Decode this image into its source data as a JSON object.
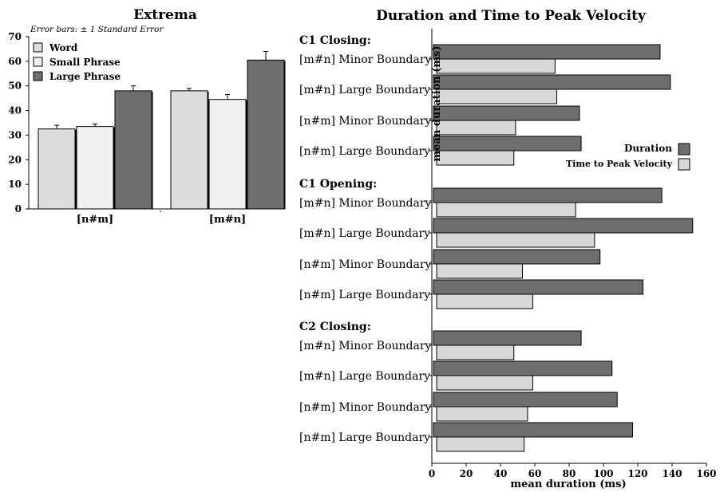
{
  "chart_data": [
    {
      "type": "bar",
      "title": "Extrema",
      "annotation": "Error bars: ± 1 Standard Error",
      "categories": [
        "[n#m]",
        "[m#n]"
      ],
      "ylim": [
        0,
        70
      ],
      "yticks": [
        "0",
        "10",
        "20",
        "30",
        "40",
        "50",
        "60",
        "70"
      ],
      "legend_position": "top-left",
      "series": [
        {
          "name": "Word",
          "color": "#dcdcdc",
          "values": [
            32.5,
            48
          ],
          "error": [
            1.5,
            1
          ]
        },
        {
          "name": "Small Phrase",
          "color": "#f0f0f0",
          "values": [
            33.5,
            44.5
          ],
          "error": [
            1,
            2
          ]
        },
        {
          "name": "Large Phrase",
          "color": "#6e6e6e",
          "values": [
            48,
            60.5
          ],
          "error": [
            2,
            3.5
          ]
        }
      ]
    },
    {
      "type": "bar",
      "orientation": "horizontal",
      "title": "Duration and Time to Peak Velocity",
      "xlabel": "mean duration (ms)",
      "ylabel_overlap": "mean duration (ms)",
      "xlim": [
        0,
        160
      ],
      "xticks": [
        "0",
        "20",
        "40",
        "60",
        "80",
        "100",
        "120",
        "140",
        "160"
      ],
      "legend_position": "right",
      "series": [
        {
          "name": "Duration",
          "color": "#6e6e6e"
        },
        {
          "name": "Time to Peak Velocity",
          "color": "#d8d8d8"
        }
      ],
      "groups": [
        {
          "label": "C1 Closing:",
          "rows": [
            {
              "label": "[m#n] Minor Boundary",
              "duration": 133,
              "peak": 69
            },
            {
              "label": "[m#n] Large Boundary",
              "duration": 139,
              "peak": 70
            },
            {
              "label": "[n#m] Minor Boundary",
              "duration": 86,
              "peak": 46
            },
            {
              "label": "[n#m] Large Boundary",
              "duration": 87,
              "peak": 45
            }
          ]
        },
        {
          "label": "C1 Opening:",
          "rows": [
            {
              "label": "[m#n] Minor Boundary",
              "duration": 134,
              "peak": 81
            },
            {
              "label": "[m#n] Large Boundary",
              "duration": 152,
              "peak": 92
            },
            {
              "label": "[n#m] Minor Boundary",
              "duration": 98,
              "peak": 50
            },
            {
              "label": "[n#m] Large Boundary",
              "duration": 123,
              "peak": 56
            }
          ]
        },
        {
          "label": "C2 Closing:",
          "rows": [
            {
              "label": "[m#n] Minor Boundary",
              "duration": 87,
              "peak": 45
            },
            {
              "label": "[m#n] Large Boundary",
              "duration": 105,
              "peak": 56
            },
            {
              "label": "[n#m] Minor Boundary",
              "duration": 108,
              "peak": 53
            },
            {
              "label": "[n#m] Large Boundary",
              "duration": 117,
              "peak": 51
            }
          ]
        }
      ]
    }
  ]
}
